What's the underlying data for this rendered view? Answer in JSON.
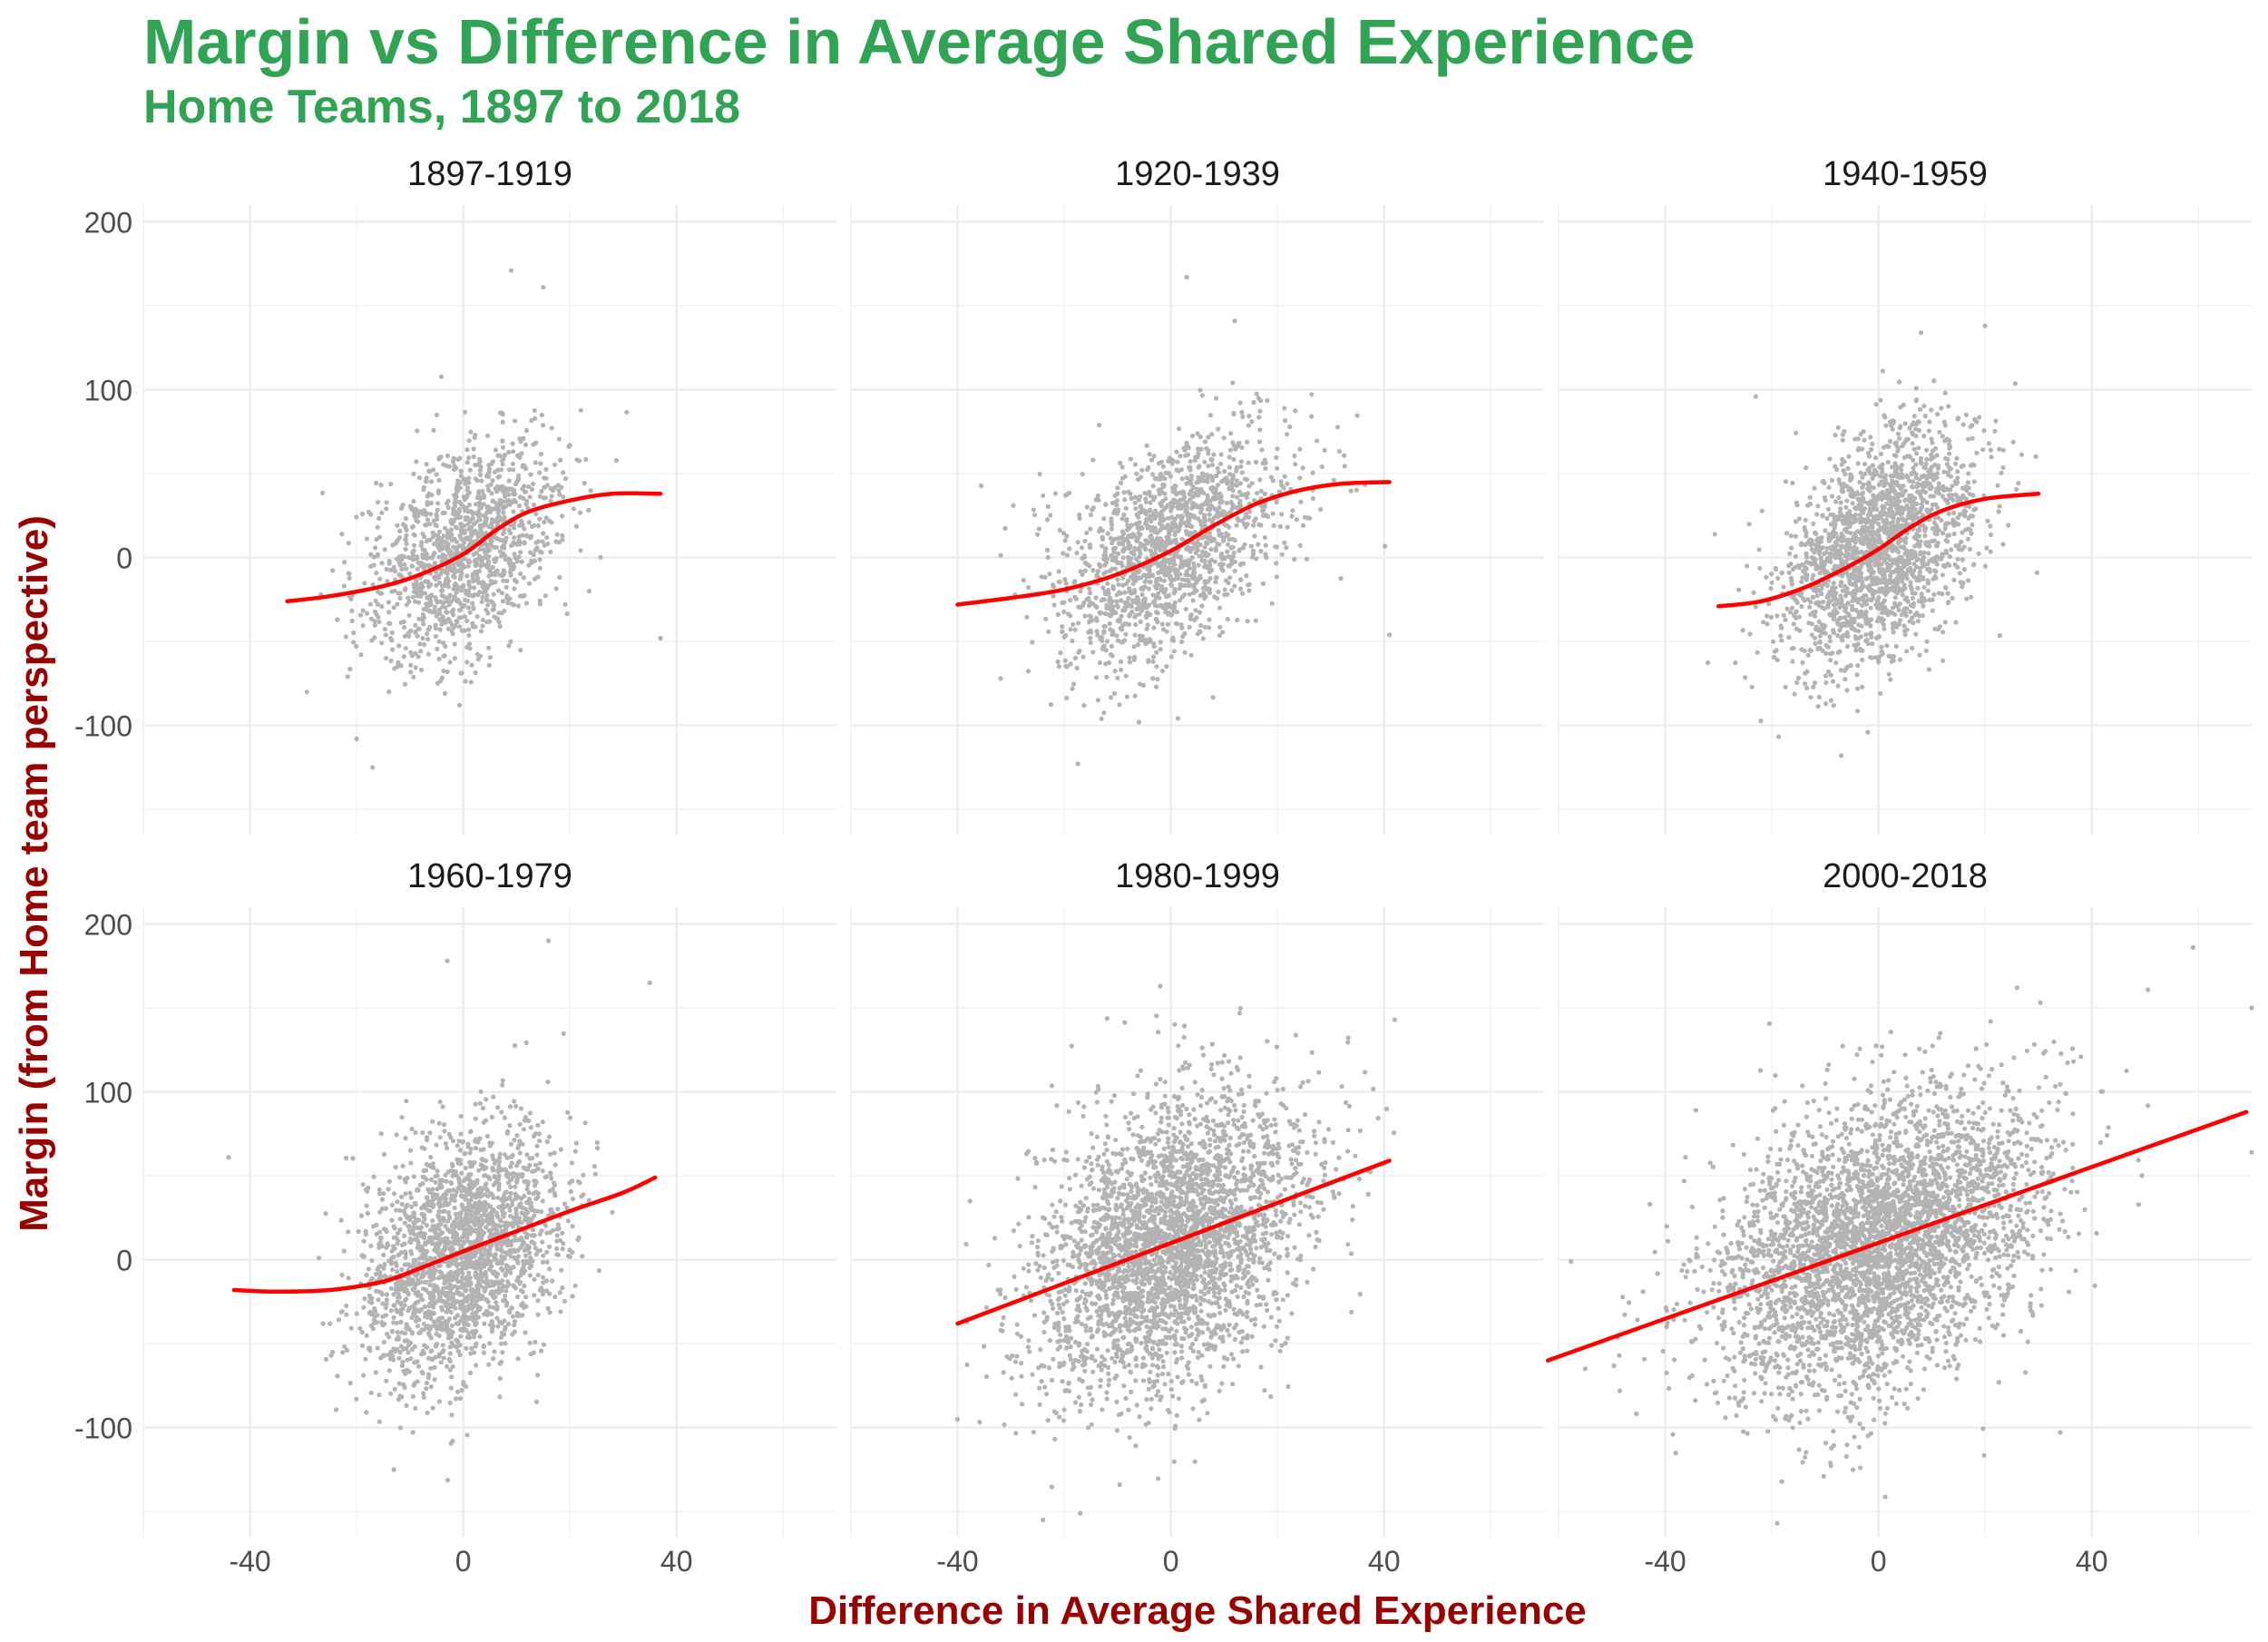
{
  "chart_data": {
    "type": "scatter",
    "title": "Margin vs Difference in Average Shared Experience",
    "subtitle": "Home Teams, 1897 to 2018",
    "xlabel": "Difference in Average Shared Experience",
    "ylabel": "Margin (from Home team perspective)",
    "xlim": [
      -60,
      70
    ],
    "ylim": [
      -165,
      210
    ],
    "x_ticks": [
      "-40",
      "0",
      "40"
    ],
    "x_tick_values": [
      -40,
      0,
      40
    ],
    "y_ticks": [
      "-100",
      "0",
      "100",
      "200"
    ],
    "y_tick_values": [
      -100,
      0,
      100,
      200
    ],
    "point_color": "#b3b3b3",
    "line_color": "#ff0000",
    "panels": [
      {
        "label": "1897-1919",
        "n_points": 1300,
        "x_range": [
          -34,
          38
        ],
        "x_sd": 9,
        "resid_sd": 30,
        "smooth": {
          "x": [
            -33,
            -25,
            -15,
            -8,
            0,
            6,
            12,
            20,
            28,
            37
          ],
          "y": [
            -26,
            -23,
            -17,
            -10,
            2,
            16,
            27,
            34,
            38,
            38
          ]
        },
        "extreme_points": [
          {
            "x": 9,
            "y": 171
          },
          {
            "x": 15,
            "y": 161
          },
          {
            "x": -20,
            "y": -108
          },
          {
            "x": -17,
            "y": -125
          },
          {
            "x": 37,
            "y": -48
          }
        ]
      },
      {
        "label": "1920-1939",
        "n_points": 1600,
        "x_range": [
          -40,
          42
        ],
        "x_sd": 11,
        "resid_sd": 30,
        "smooth": {
          "x": [
            -40,
            -30,
            -20,
            -10,
            0,
            8,
            16,
            24,
            32,
            41
          ],
          "y": [
            -28,
            -24,
            -19,
            -10,
            4,
            19,
            32,
            40,
            44,
            45
          ]
        },
        "extreme_points": [
          {
            "x": 3,
            "y": 167
          },
          {
            "x": 12,
            "y": 141
          },
          {
            "x": -13,
            "y": -96
          },
          {
            "x": 41,
            "y": -46
          },
          {
            "x": -6,
            "y": -98
          }
        ]
      },
      {
        "label": "1940-1959",
        "n_points": 2000,
        "x_range": [
          -32,
          31
        ],
        "x_sd": 9,
        "resid_sd": 32,
        "smooth": {
          "x": [
            -30,
            -22,
            -14,
            -6,
            0,
            6,
            12,
            20,
            30
          ],
          "y": [
            -29,
            -26,
            -18,
            -6,
            5,
            18,
            28,
            35,
            38
          ]
        },
        "extreme_points": [
          {
            "x": 20,
            "y": 138
          },
          {
            "x": 8,
            "y": 134
          },
          {
            "x": -7,
            "y": -118
          },
          {
            "x": -2,
            "y": -104
          },
          {
            "x": -23,
            "y": 96
          }
        ]
      },
      {
        "label": "1960-1979",
        "n_points": 2200,
        "x_range": [
          -44,
          36
        ],
        "x_sd": 9,
        "resid_sd": 34,
        "smooth": {
          "x": [
            -43,
            -35,
            -25,
            -15,
            -8,
            0,
            10,
            20,
            30,
            36
          ],
          "y": [
            -18,
            -19,
            -18,
            -13,
            -5,
            5,
            17,
            29,
            40,
            49
          ]
        },
        "extreme_points": [
          {
            "x": -3,
            "y": 178
          },
          {
            "x": 16,
            "y": 190
          },
          {
            "x": 35,
            "y": 165
          },
          {
            "x": -13,
            "y": -125
          },
          {
            "x": -2,
            "y": -108
          },
          {
            "x": -44,
            "y": 61
          }
        ]
      },
      {
        "label": "1980-1999",
        "n_points": 3200,
        "x_range": [
          -40,
          42
        ],
        "x_sd": 12,
        "resid_sd": 42,
        "smooth": {
          "x": [
            -40,
            41
          ],
          "y": [
            -38,
            59
          ]
        },
        "extreme_points": [
          {
            "x": -24,
            "y": -155
          },
          {
            "x": -17,
            "y": -151
          },
          {
            "x": -2,
            "y": 163
          },
          {
            "x": 37,
            "y": 53
          },
          {
            "x": -40,
            "y": -95
          }
        ]
      },
      {
        "label": "2000-2018",
        "n_points": 3800,
        "x_range": [
          -62,
          70
        ],
        "x_sd": 15,
        "resid_sd": 42,
        "smooth": {
          "x": [
            -62,
            69
          ],
          "y": [
            -60,
            88
          ]
        },
        "extreme_points": [
          {
            "x": 59,
            "y": 186
          },
          {
            "x": 70,
            "y": 150
          },
          {
            "x": -19,
            "y": -157
          },
          {
            "x": 26,
            "y": 162
          },
          {
            "x": 70,
            "y": 64
          },
          {
            "x": -55,
            "y": -65
          }
        ]
      }
    ]
  }
}
